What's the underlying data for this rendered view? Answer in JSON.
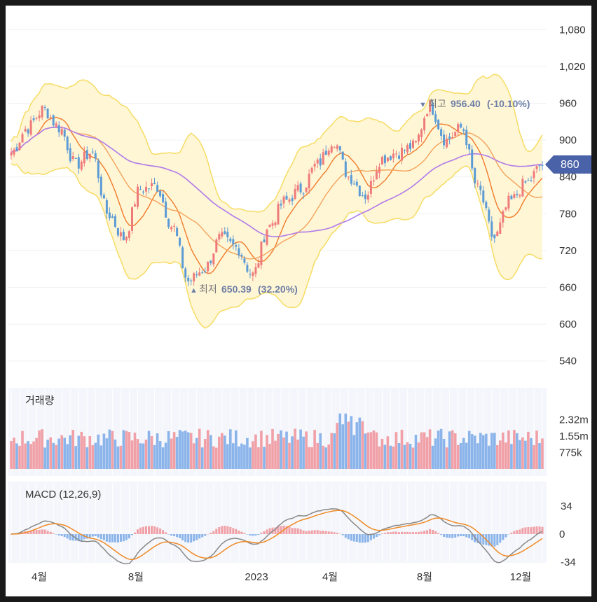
{
  "colors": {
    "up": "#ef7a7a",
    "down": "#5b9bd5",
    "bb_fill": "#fff6d6",
    "bb_line": "#f6dc63",
    "ma_short": "#f07a2a",
    "ma_mid": "#f4a25a",
    "ma_long": "#b07ae8",
    "volume_up": "#f0a0a6",
    "volume_down": "#8ab4ea",
    "macd_line": "#888888",
    "signal_line": "#f08a24",
    "badge": "#4a63a8"
  },
  "price_panel": {
    "y_ticks": [
      "1,080",
      "1,020",
      "960",
      "900",
      "840",
      "780",
      "720",
      "660",
      "600",
      "540"
    ],
    "current_price": "860",
    "high_note": {
      "marker": "▼",
      "prefix": "최고",
      "value": "956.40",
      "change": "(-10.10%)"
    },
    "low_note": {
      "marker": "▲",
      "prefix": "최저",
      "value": "650.39",
      "change": "(32.20%)"
    }
  },
  "volume_panel": {
    "title": "거래량",
    "y_ticks": [
      "2.32m",
      "1.55m",
      "775k"
    ]
  },
  "macd_panel": {
    "title": "MACD (12,26,9)",
    "y_ticks": [
      "34",
      "0",
      "-34"
    ]
  },
  "x_ticks": [
    "4월",
    "8월",
    "2023",
    "4월",
    "8월",
    "12월"
  ],
  "chart_data": {
    "type": "candlestick",
    "x_ticks": [
      "4월",
      "8월",
      "2023",
      "4월",
      "8월",
      "12월"
    ],
    "ylim": [
      510,
      1110
    ],
    "y_ticks": [
      540,
      600,
      660,
      720,
      780,
      840,
      900,
      960,
      1020,
      1080
    ],
    "close_anchors": [
      {
        "x": "start",
        "value": 880
      },
      {
        "x": "4월 early",
        "value": 920
      },
      {
        "x": "4월",
        "value": 950
      },
      {
        "x": "5월",
        "value": 920
      },
      {
        "x": "6월",
        "value": 860
      },
      {
        "x": "6월 mid",
        "value": 880
      },
      {
        "x": "7월",
        "value": 780
      },
      {
        "x": "7월 mid",
        "value": 740
      },
      {
        "x": "8월",
        "value": 820
      },
      {
        "x": "8월 mid",
        "value": 825
      },
      {
        "x": "9월",
        "value": 760
      },
      {
        "x": "10월",
        "value": 670
      },
      {
        "x": "10월 mid",
        "value": 690
      },
      {
        "x": "11월",
        "value": 740
      },
      {
        "x": "12월",
        "value": 725
      },
      {
        "x": "2023",
        "value": 680
      },
      {
        "x": "2023 2월",
        "value": 760
      },
      {
        "x": "3월",
        "value": 800
      },
      {
        "x": "3월 mid",
        "value": 820
      },
      {
        "x": "4월",
        "value": 860
      },
      {
        "x": "4월 mid",
        "value": 900
      },
      {
        "x": "5월",
        "value": 840
      },
      {
        "x": "5월 mid",
        "value": 810
      },
      {
        "x": "6월",
        "value": 870
      },
      {
        "x": "7월",
        "value": 880
      },
      {
        "x": "7월 mid",
        "value": 890
      },
      {
        "x": "8월",
        "value": 956
      },
      {
        "x": "8월 mid",
        "value": 900
      },
      {
        "x": "9월",
        "value": 920
      },
      {
        "x": "10월",
        "value": 820
      },
      {
        "x": "10월 mid",
        "value": 740
      },
      {
        "x": "11월",
        "value": 800
      },
      {
        "x": "12월",
        "value": 830
      },
      {
        "x": "end",
        "value": 860
      }
    ],
    "annotations": {
      "high": 956.4,
      "low": 650.39,
      "last": 860
    },
    "volume_ylim": [
      0,
      2700000
    ],
    "volume_ticks": [
      775000,
      1550000,
      2320000
    ],
    "macd_ylim": [
      -40,
      40
    ],
    "macd_ticks": [
      -34,
      0,
      34
    ],
    "legend": "none",
    "grid": true
  }
}
